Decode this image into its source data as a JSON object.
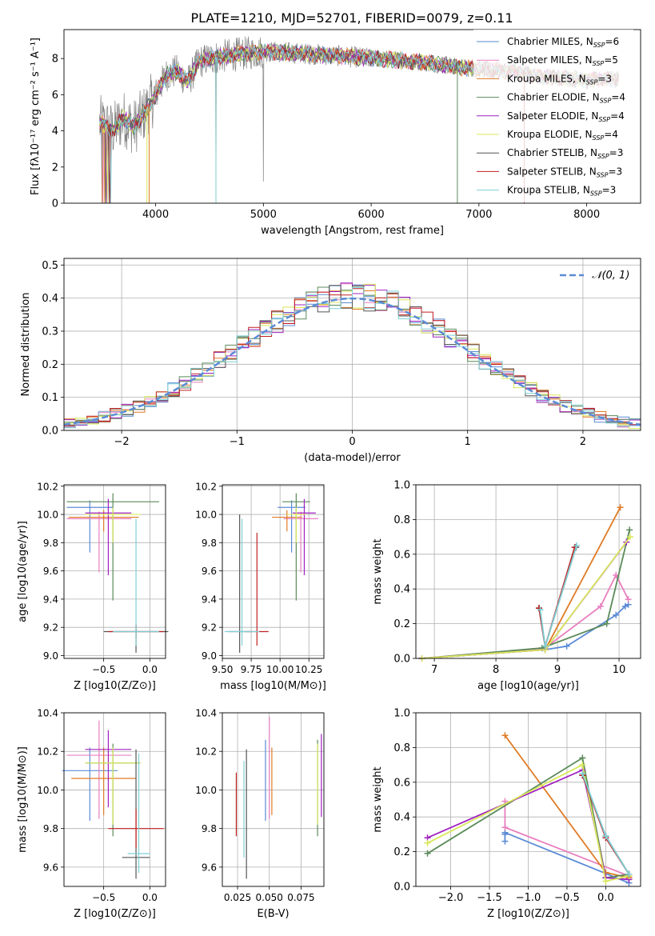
{
  "title": "PLATE=1210, MJD=52701, FIBERID=0079, z=0.11",
  "colors": {
    "chabrier_miles": "#5b8bd6",
    "salpeter_miles": "#e87fbf",
    "kroupa_miles": "#e07b26",
    "chabrier_elodie": "#5a8a5a",
    "salpeter_elodie": "#a020c0",
    "kroupa_elodie": "#d8e85a",
    "chabrier_stelib": "#555555",
    "salpeter_stelib": "#c02020",
    "kroupa_stelib": "#7fd0d6",
    "normal": "#5b8bd6",
    "grid": "#b0b0b0"
  },
  "chart_data": [
    {
      "id": "spectrum",
      "type": "line",
      "title": "PLATE=1210, MJD=52701, FIBERID=0079, z=0.11",
      "xlabel": "wavelength [Angstrom, rest frame]",
      "ylabel": "Flux [fλ10⁻¹⁷ erg cm⁻² s⁻¹ A⁻¹]",
      "xlim": [
        3150,
        8500
      ],
      "ylim": [
        0,
        9.6
      ],
      "xticks": [
        4000,
        5000,
        6000,
        7000,
        8000
      ],
      "yticks": [
        0,
        2,
        4,
        6,
        8
      ],
      "grid": false,
      "legend_position": "top-right",
      "legend": [
        {
          "label": "Chabrier MILES, N",
          "sub": "SSP",
          "suffix": "=6"
        },
        {
          "label": "Salpeter MILES, N",
          "sub": "SSP",
          "suffix": "=5"
        },
        {
          "label": "Kroupa MILES, N",
          "sub": "SSP",
          "suffix": "=3"
        },
        {
          "label": "Chabrier ELODIE, N",
          "sub": "SSP",
          "suffix": "=4"
        },
        {
          "label": "Salpeter ELODIE, N",
          "sub": "SSP",
          "suffix": "=4"
        },
        {
          "label": "Kroupa ELODIE, N",
          "sub": "SSP",
          "suffix": "=4"
        },
        {
          "label": "Chabrier STELIB, N",
          "sub": "SSP",
          "suffix": "=3"
        },
        {
          "label": "Salpeter STELIB, N",
          "sub": "SSP",
          "suffix": "=3"
        },
        {
          "label": "Kroupa STELIB, N",
          "sub": "SSP",
          "suffix": "=3"
        }
      ],
      "model_anchors": {
        "x": [
          3500,
          3600,
          3700,
          3800,
          3900,
          4000,
          4100,
          4200,
          4300,
          4400,
          4500,
          4700,
          5000,
          5300,
          5600,
          6000,
          6300,
          6600,
          7000,
          7300,
          7600,
          8000,
          8300
        ],
        "y": [
          4.4,
          4.0,
          4.7,
          4.2,
          5.0,
          6.0,
          7.1,
          7.3,
          6.7,
          7.8,
          8.0,
          8.2,
          8.4,
          8.3,
          8.2,
          8.0,
          7.9,
          7.7,
          7.4,
          7.3,
          7.0,
          6.8,
          6.9
        ]
      }
    },
    {
      "id": "residuals",
      "type": "bar",
      "xlabel": "(data-model)/error",
      "ylabel": "Normed distribution",
      "xlim": [
        -2.5,
        2.5
      ],
      "ylim": [
        0,
        0.52
      ],
      "xticks": [
        -2,
        -1,
        0,
        1,
        2
      ],
      "yticks": [
        0.0,
        0.1,
        0.2,
        0.3,
        0.4,
        0.5
      ],
      "grid": true,
      "legend_position": "top-right",
      "legend": "𝒩(0, 1)",
      "bin_width": 0.1
    },
    {
      "id": "age-vs-Z",
      "type": "scatter",
      "xlabel": "Z [log10(Z/Z⊙)]",
      "ylabel": "age  [log10(age/yr)]",
      "xlim": [
        -0.93,
        0.17
      ],
      "ylim": [
        8.98,
        10.21
      ],
      "xticks": [
        -0.5,
        0.0
      ],
      "yticks": [
        9.0,
        9.2,
        9.4,
        9.6,
        9.8,
        10.0,
        10.2
      ],
      "grid": true,
      "points": [
        {
          "series": "chabrier_miles",
          "x": -0.65,
          "xerr": 0.25,
          "y": 10.05,
          "yerr": [
            0.32,
            0.05
          ]
        },
        {
          "series": "salpeter_miles",
          "x": -0.55,
          "xerr": 0.35,
          "y": 9.97,
          "yerr": [
            0.38,
            0.05
          ]
        },
        {
          "series": "kroupa_miles",
          "x": -0.5,
          "xerr": 0.38,
          "y": 9.98,
          "yerr": [
            0.1,
            0.05
          ]
        },
        {
          "series": "chabrier_elodie",
          "x": -0.4,
          "xerr": 0.5,
          "y": 10.09,
          "yerr": [
            0.7,
            0.06
          ]
        },
        {
          "series": "salpeter_elodie",
          "x": -0.45,
          "xerr": 0.25,
          "y": 10.01,
          "yerr": [
            0.44,
            0.1
          ]
        },
        {
          "series": "kroupa_elodie",
          "x": -0.4,
          "xerr": 0.3,
          "y": 10.0,
          "yerr": [
            0.2,
            0.05
          ]
        },
        {
          "series": "chabrier_stelib",
          "x": -0.15,
          "xerr": 0.35,
          "y": 9.17,
          "yerr": [
            0.15,
            0.05
          ]
        },
        {
          "series": "salpeter_stelib",
          "x": -0.15,
          "xerr": 0.3,
          "y": 9.17,
          "yerr": [
            0.05,
            0.05
          ]
        },
        {
          "series": "kroupa_stelib",
          "x": -0.15,
          "xerr": 0.25,
          "y": 9.17,
          "yerr": [
            0.1,
            0.8
          ]
        }
      ]
    },
    {
      "id": "age-vs-mass",
      "type": "scatter",
      "xlabel": "mass [log10(M/M⊙)]",
      "ylabel": "",
      "xlim": [
        9.5,
        10.38
      ],
      "ylim": [
        8.98,
        10.21
      ],
      "xticks": [
        9.5,
        9.75,
        10.0,
        10.25
      ],
      "yticks": [
        9.0,
        9.2,
        9.4,
        9.6,
        9.8,
        10.0,
        10.2
      ],
      "grid": true,
      "points": [
        {
          "series": "chabrier_miles",
          "x": 10.1,
          "xerr": 0.12,
          "y": 10.05,
          "yerr": [
            0.32,
            0.05
          ]
        },
        {
          "series": "salpeter_miles",
          "x": 10.18,
          "xerr": 0.15,
          "y": 9.97,
          "yerr": [
            0.38,
            0.05
          ]
        },
        {
          "series": "kroupa_miles",
          "x": 10.06,
          "xerr": 0.13,
          "y": 9.98,
          "yerr": [
            0.1,
            0.05
          ]
        },
        {
          "series": "chabrier_elodie",
          "x": 10.14,
          "xerr": 0.12,
          "y": 10.09,
          "yerr": [
            0.7,
            0.06
          ]
        },
        {
          "series": "salpeter_elodie",
          "x": 10.21,
          "xerr": 0.1,
          "y": 10.01,
          "yerr": [
            0.44,
            0.1
          ]
        },
        {
          "series": "kroupa_elodie",
          "x": 10.14,
          "xerr": 0.08,
          "y": 10.0,
          "yerr": [
            0.2,
            0.05
          ]
        },
        {
          "series": "chabrier_stelib",
          "x": 9.65,
          "xerr": 0.1,
          "y": 9.17,
          "yerr": [
            0.15,
            0.83
          ]
        },
        {
          "series": "salpeter_stelib",
          "x": 9.8,
          "xerr": 0.1,
          "y": 9.17,
          "yerr": [
            0.1,
            0.7
          ]
        },
        {
          "series": "kroupa_stelib",
          "x": 9.67,
          "xerr": 0.15,
          "y": 9.17,
          "yerr": [
            0.1,
            0.8
          ]
        }
      ]
    },
    {
      "id": "weight-vs-age",
      "type": "line",
      "xlabel": "age  [log10(age/yr)]",
      "ylabel": "mass weight",
      "xlim": [
        6.7,
        10.35
      ],
      "ylim": [
        0,
        1.0
      ],
      "xticks": [
        7,
        8,
        9,
        10
      ],
      "yticks": [
        0.0,
        0.2,
        0.4,
        0.6,
        0.8,
        1.0
      ],
      "grid": true,
      "series": [
        {
          "name": "chabrier_miles",
          "x": [
            6.8,
            8.8,
            9.15,
            9.95,
            10.1,
            10.15
          ],
          "y": [
            0.0,
            0.05,
            0.07,
            0.25,
            0.3,
            0.31
          ]
        },
        {
          "name": "salpeter_miles",
          "x": [
            6.8,
            8.8,
            9.7,
            9.95,
            10.15
          ],
          "y": [
            0.0,
            0.06,
            0.3,
            0.48,
            0.34
          ]
        },
        {
          "name": "kroupa_miles",
          "x": [
            6.8,
            8.8,
            10.02
          ],
          "y": [
            0.0,
            0.05,
            0.87
          ]
        },
        {
          "name": "chabrier_elodie",
          "x": [
            6.8,
            8.75,
            9.8,
            10.17
          ],
          "y": [
            0.0,
            0.06,
            0.2,
            0.74
          ]
        },
        {
          "name": "salpeter_elodie",
          "x": [
            6.8,
            8.8,
            10.12
          ],
          "y": [
            0.0,
            0.05,
            0.67
          ]
        },
        {
          "name": "kroupa_elodie",
          "x": [
            6.8,
            8.8,
            10.18
          ],
          "y": [
            0.0,
            0.05,
            0.7
          ]
        },
        {
          "name": "chabrier_stelib",
          "x": [
            8.7,
            8.8,
            9.3
          ],
          "y": [
            0.29,
            0.07,
            0.64
          ]
        },
        {
          "name": "salpeter_stelib",
          "x": [
            8.7,
            8.8,
            9.28
          ],
          "y": [
            0.29,
            0.07,
            0.64
          ]
        },
        {
          "name": "kroupa_stelib",
          "x": [
            8.72,
            8.8,
            9.31
          ],
          "y": [
            0.28,
            0.07,
            0.65
          ]
        }
      ]
    },
    {
      "id": "mass-vs-Z",
      "type": "scatter",
      "xlabel": "Z [log10(Z/Z⊙)]",
      "ylabel": "mass [log10(M/M⊙)]",
      "xlim": [
        -0.93,
        0.17
      ],
      "ylim": [
        9.5,
        10.4
      ],
      "xticks": [
        -0.5,
        0.0
      ],
      "yticks": [
        9.6,
        9.8,
        10.0,
        10.2,
        10.4
      ],
      "grid": true,
      "points": [
        {
          "series": "chabrier_miles",
          "x": -0.65,
          "xerr": 0.3,
          "y": 10.1,
          "yerr": [
            0.26,
            0.12
          ]
        },
        {
          "series": "salpeter_miles",
          "x": -0.55,
          "xerr": 0.35,
          "y": 10.18,
          "yerr": [
            0.33,
            0.18
          ]
        },
        {
          "series": "kroupa_miles",
          "x": -0.5,
          "xerr": 0.35,
          "y": 10.06,
          "yerr": [
            0.19,
            0.16
          ]
        },
        {
          "series": "chabrier_elodie",
          "x": -0.4,
          "xerr": 0.3,
          "y": 10.14,
          "yerr": [
            0.38,
            0.1
          ]
        },
        {
          "series": "salpeter_elodie",
          "x": -0.45,
          "xerr": 0.25,
          "y": 10.21,
          "yerr": [
            0.3,
            0.1
          ]
        },
        {
          "series": "kroupa_elodie",
          "x": -0.4,
          "xerr": 0.3,
          "y": 10.14,
          "yerr": [
            0.32,
            0.08
          ]
        },
        {
          "series": "chabrier_stelib",
          "x": -0.15,
          "xerr": 0.15,
          "y": 9.65,
          "yerr": [
            0.11,
            0.56
          ]
        },
        {
          "series": "salpeter_stelib",
          "x": -0.15,
          "xerr": 0.3,
          "y": 9.8,
          "yerr": [
            0.1,
            0.1
          ]
        },
        {
          "series": "kroupa_stelib",
          "x": -0.12,
          "xerr": 0.12,
          "y": 9.67,
          "yerr": [
            0.1,
            0.52
          ]
        }
      ]
    },
    {
      "id": "mass-vs-ebv",
      "type": "scatter",
      "xlabel": "E(B-V)",
      "ylabel": "",
      "xlim": [
        0.013,
        0.093
      ],
      "ylim": [
        9.5,
        10.4
      ],
      "xticks": [
        0.025,
        0.05,
        0.075
      ],
      "yticks": [
        9.6,
        9.8,
        10.0,
        10.2,
        10.4
      ],
      "grid": true,
      "points": [
        {
          "series": "chabrier_miles",
          "x": 0.047,
          "y": 10.1,
          "yerr": [
            0.26,
            0.16
          ]
        },
        {
          "series": "salpeter_miles",
          "x": 0.05,
          "y": 10.18,
          "yerr": [
            0.33,
            0.2
          ]
        },
        {
          "series": "kroupa_miles",
          "x": 0.052,
          "y": 10.06,
          "yerr": [
            0.19,
            0.16
          ]
        },
        {
          "series": "chabrier_elodie",
          "x": 0.088,
          "y": 10.14,
          "yerr": [
            0.38,
            0.12
          ]
        },
        {
          "series": "salpeter_elodie",
          "x": 0.091,
          "y": 10.21,
          "yerr": [
            0.35,
            0.08
          ]
        },
        {
          "series": "kroupa_elodie",
          "x": 0.088,
          "y": 10.14,
          "yerr": [
            0.32,
            0.1
          ]
        },
        {
          "series": "chabrier_stelib",
          "x": 0.032,
          "y": 9.65,
          "yerr": [
            0.11,
            0.56
          ]
        },
        {
          "series": "salpeter_stelib",
          "x": 0.024,
          "y": 9.8,
          "yerr": [
            0.04,
            0.29
          ]
        },
        {
          "series": "kroupa_stelib",
          "x": 0.03,
          "y": 9.67,
          "yerr": [
            0.02,
            0.48
          ]
        }
      ]
    },
    {
      "id": "weight-vs-Z",
      "type": "line",
      "xlabel": "Z [log10(Z/Z⊙)]",
      "ylabel": "mass weight",
      "xlim": [
        -2.45,
        0.45
      ],
      "ylim": [
        0,
        1.0
      ],
      "xticks": [
        -2.0,
        -1.5,
        -1.0,
        -0.5,
        0.0
      ],
      "yticks": [
        0.0,
        0.2,
        0.4,
        0.6,
        0.8,
        1.0
      ],
      "grid": true,
      "series": [
        {
          "name": "chabrier_miles",
          "x": [
            -1.3,
            -1.3,
            -1.3,
            0.3
          ],
          "y": [
            0.26,
            0.3,
            0.31,
            0.02
          ]
        },
        {
          "name": "salpeter_miles",
          "x": [
            -1.3,
            -1.3,
            0.3,
            0.3
          ],
          "y": [
            0.49,
            0.34,
            0.06,
            0.05
          ]
        },
        {
          "name": "kroupa_miles",
          "x": [
            -1.3,
            0.0,
            0.3
          ],
          "y": [
            0.87,
            0.08,
            0.05
          ]
        },
        {
          "name": "chabrier_elodie",
          "x": [
            -2.3,
            -0.3,
            0.0,
            0.3
          ],
          "y": [
            0.19,
            0.74,
            0.05,
            0.07
          ]
        },
        {
          "name": "salpeter_elodie",
          "x": [
            -2.3,
            -0.3,
            0.0,
            0.3
          ],
          "y": [
            0.28,
            0.67,
            0.05,
            0.04
          ]
        },
        {
          "name": "kroupa_elodie",
          "x": [
            -2.3,
            -0.3,
            0.0,
            0.3
          ],
          "y": [
            0.25,
            0.7,
            0.03,
            0.06
          ]
        },
        {
          "name": "chabrier_stelib",
          "x": [
            -0.3,
            0.0,
            0.3
          ],
          "y": [
            0.64,
            0.29,
            0.07
          ]
        },
        {
          "name": "salpeter_stelib",
          "x": [
            -0.3,
            0.0,
            0.3
          ],
          "y": [
            0.64,
            0.28,
            0.07
          ]
        },
        {
          "name": "kroupa_stelib",
          "x": [
            -0.3,
            0.0,
            0.3
          ],
          "y": [
            0.65,
            0.29,
            0.07
          ]
        }
      ]
    }
  ]
}
